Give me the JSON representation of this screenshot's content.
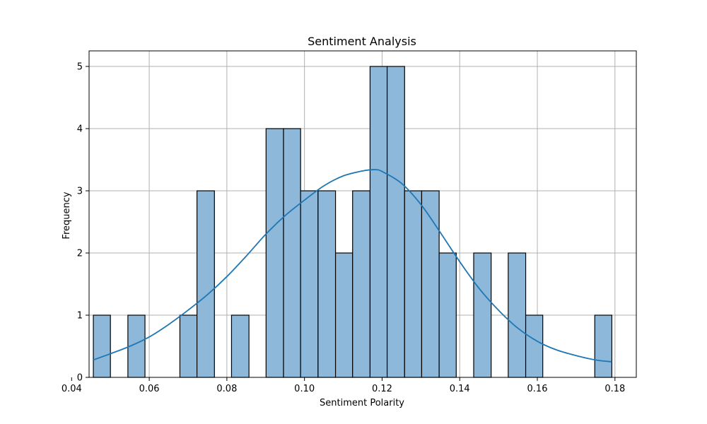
{
  "chart_data": {
    "type": "bar",
    "title": "Sentiment Analysis",
    "xlabel": "Sentiment Polarity",
    "ylabel": "Frequency",
    "xlim": [
      0.0445,
      0.1855
    ],
    "ylim": [
      0,
      5.25
    ],
    "xticks": [
      0.04,
      0.06,
      0.08,
      0.1,
      0.12,
      0.14,
      0.16,
      0.18
    ],
    "xtick_labels": [
      "0.04",
      "0.06",
      "0.08",
      "0.10",
      "0.12",
      "0.14",
      "0.16",
      "0.18"
    ],
    "yticks": [
      0,
      1,
      2,
      3,
      4,
      5
    ],
    "ytick_labels": [
      "0",
      "1",
      "2",
      "3",
      "4",
      "5"
    ],
    "grid": true,
    "bins": [
      {
        "x0": 0.0456,
        "x1": 0.05,
        "count": 1
      },
      {
        "x0": 0.05,
        "x1": 0.0545,
        "count": 0
      },
      {
        "x0": 0.0545,
        "x1": 0.0589,
        "count": 1
      },
      {
        "x0": 0.0589,
        "x1": 0.0634,
        "count": 0
      },
      {
        "x0": 0.0634,
        "x1": 0.0679,
        "count": 0
      },
      {
        "x0": 0.0679,
        "x1": 0.0723,
        "count": 1
      },
      {
        "x0": 0.0723,
        "x1": 0.0768,
        "count": 3
      },
      {
        "x0": 0.0768,
        "x1": 0.0812,
        "count": 0
      },
      {
        "x0": 0.0812,
        "x1": 0.0857,
        "count": 1
      },
      {
        "x0": 0.0857,
        "x1": 0.0901,
        "count": 0
      },
      {
        "x0": 0.0901,
        "x1": 0.0946,
        "count": 4
      },
      {
        "x0": 0.0946,
        "x1": 0.099,
        "count": 4
      },
      {
        "x0": 0.099,
        "x1": 0.1035,
        "count": 3
      },
      {
        "x0": 0.1035,
        "x1": 0.108,
        "count": 3
      },
      {
        "x0": 0.108,
        "x1": 0.1124,
        "count": 2
      },
      {
        "x0": 0.1124,
        "x1": 0.1169,
        "count": 3
      },
      {
        "x0": 0.1169,
        "x1": 0.1213,
        "count": 5
      },
      {
        "x0": 0.1213,
        "x1": 0.1258,
        "count": 5
      },
      {
        "x0": 0.1258,
        "x1": 0.1302,
        "count": 3
      },
      {
        "x0": 0.1302,
        "x1": 0.1347,
        "count": 3
      },
      {
        "x0": 0.1347,
        "x1": 0.1391,
        "count": 2
      },
      {
        "x0": 0.1391,
        "x1": 0.1436,
        "count": 0
      },
      {
        "x0": 0.1436,
        "x1": 0.1481,
        "count": 2
      },
      {
        "x0": 0.1481,
        "x1": 0.1525,
        "count": 0
      },
      {
        "x0": 0.1525,
        "x1": 0.157,
        "count": 2
      },
      {
        "x0": 0.157,
        "x1": 0.1614,
        "count": 1
      },
      {
        "x0": 0.1614,
        "x1": 0.1659,
        "count": 0
      },
      {
        "x0": 0.1659,
        "x1": 0.1703,
        "count": 0
      },
      {
        "x0": 0.1703,
        "x1": 0.1748,
        "count": 0
      },
      {
        "x0": 0.1748,
        "x1": 0.1792,
        "count": 1
      }
    ],
    "kde": {
      "x": [
        0.0456,
        0.05,
        0.055,
        0.06,
        0.065,
        0.07,
        0.075,
        0.08,
        0.085,
        0.09,
        0.095,
        0.1,
        0.105,
        0.11,
        0.115,
        0.118,
        0.12,
        0.125,
        0.13,
        0.135,
        0.14,
        0.145,
        0.15,
        0.155,
        0.16,
        0.165,
        0.17,
        0.175,
        0.1792
      ],
      "y": [
        0.28,
        0.38,
        0.5,
        0.65,
        0.85,
        1.08,
        1.33,
        1.62,
        1.95,
        2.3,
        2.6,
        2.85,
        3.08,
        3.24,
        3.32,
        3.34,
        3.31,
        3.12,
        2.78,
        2.33,
        1.86,
        1.43,
        1.08,
        0.79,
        0.58,
        0.44,
        0.35,
        0.28,
        0.25
      ]
    },
    "colors": {
      "bar_fill": "#8db8da",
      "bar_edge": "#000000",
      "kde_line": "#1f77b4",
      "grid": "#b0b0b0"
    }
  }
}
